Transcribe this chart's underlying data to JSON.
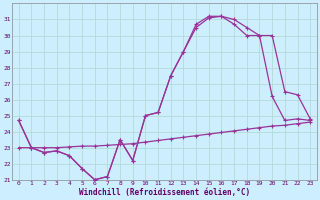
{
  "xlabel": "Windchill (Refroidissement éolien,°C)",
  "background_color": "#cceeff",
  "grid_color": "#aaddcc",
  "line_color": "#993399",
  "xlim": [
    -0.5,
    23.5
  ],
  "ylim": [
    21,
    32
  ],
  "yticks": [
    21,
    22,
    23,
    24,
    25,
    26,
    27,
    28,
    29,
    30,
    31
  ],
  "xticks": [
    0,
    1,
    2,
    3,
    4,
    5,
    6,
    7,
    8,
    9,
    10,
    11,
    12,
    13,
    14,
    15,
    16,
    17,
    18,
    19,
    20,
    21,
    22,
    23
  ],
  "line1_x": [
    0,
    1,
    2,
    3,
    4,
    5,
    6,
    7,
    8,
    9,
    10,
    11,
    12,
    13,
    14,
    15,
    16,
    17,
    18,
    19,
    20,
    21,
    22,
    23
  ],
  "line1_y": [
    24.7,
    23.0,
    22.7,
    22.8,
    22.5,
    21.7,
    21.0,
    21.2,
    23.5,
    22.2,
    25.0,
    25.2,
    27.5,
    29.0,
    30.5,
    31.1,
    31.2,
    31.0,
    30.5,
    30.0,
    26.2,
    24.7,
    24.8,
    24.7
  ],
  "line2_x": [
    0,
    1,
    2,
    3,
    4,
    5,
    6,
    7,
    8,
    9,
    10,
    11,
    12,
    13,
    14,
    15,
    16,
    17,
    18,
    19,
    20,
    21,
    22,
    23
  ],
  "line2_y": [
    24.7,
    23.0,
    22.7,
    22.8,
    22.5,
    21.7,
    21.0,
    21.2,
    23.5,
    22.2,
    25.0,
    25.2,
    27.5,
    29.0,
    30.7,
    31.2,
    31.2,
    30.7,
    30.0,
    30.0,
    30.0,
    26.5,
    26.3,
    24.8
  ],
  "line3_x": [
    0,
    1,
    2,
    3,
    4,
    5,
    6,
    7,
    8,
    9,
    10,
    11,
    12,
    13,
    14,
    15,
    16,
    17,
    18,
    19,
    20,
    21,
    22,
    23
  ],
  "line3_y": [
    23.0,
    23.0,
    23.0,
    23.0,
    23.05,
    23.1,
    23.1,
    23.15,
    23.2,
    23.25,
    23.35,
    23.45,
    23.55,
    23.65,
    23.75,
    23.85,
    23.95,
    24.05,
    24.15,
    24.25,
    24.35,
    24.4,
    24.5,
    24.6
  ]
}
